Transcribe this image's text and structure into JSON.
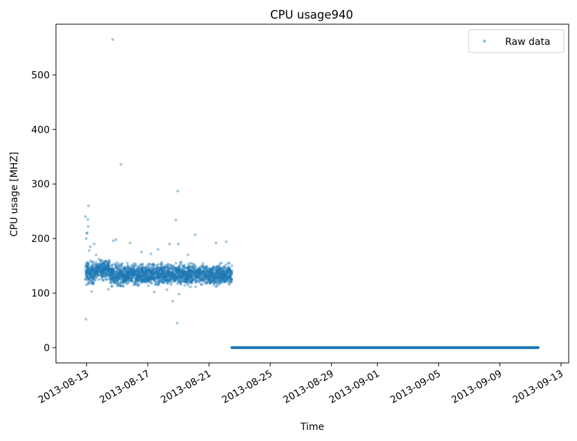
{
  "chart_data": {
    "type": "scatter",
    "title": "CPU usage940",
    "xlabel": "Time",
    "ylabel": "CPU usage [MHZ]",
    "x_axis_type": "date",
    "xlim": [
      "2013-08-11T00:00",
      "2013-09-13T12:00"
    ],
    "ylim": [
      -28,
      593
    ],
    "x_ticks": [
      "2013-08-13",
      "2013-08-17",
      "2013-08-21",
      "2013-08-25",
      "2013-08-29",
      "2013-09-01",
      "2013-09-05",
      "2013-09-09",
      "2013-09-13"
    ],
    "y_ticks": [
      0,
      100,
      200,
      300,
      400,
      500
    ],
    "grid": false,
    "legend": {
      "placement": "top-right",
      "entries": [
        "Raw data"
      ]
    },
    "series": [
      {
        "name": "Raw data",
        "color": "#1f77b4",
        "marker": "circle",
        "alpha": 0.4,
        "points": [
          [
            "2013-08-12T22:00",
            240
          ],
          [
            "2013-08-12T23:00",
            52
          ],
          [
            "2013-08-13T03:00",
            260
          ],
          [
            "2013-08-13T02:00",
            235
          ],
          [
            "2013-08-13T02:30",
            222
          ],
          [
            "2013-08-13T01:00",
            210
          ],
          [
            "2013-08-12T23:30",
            200
          ],
          [
            "2013-08-13T12:00",
            190
          ],
          [
            "2013-08-13T06:00",
            185
          ],
          [
            "2013-08-14T17:00",
            565
          ],
          [
            "2013-08-14T18:00",
            196
          ],
          [
            "2013-08-14T22:00",
            198
          ],
          [
            "2013-08-15T06:00",
            336
          ],
          [
            "2013-08-15T20:00",
            192
          ],
          [
            "2013-08-16T14:00",
            175
          ],
          [
            "2013-08-17T05:00",
            172
          ],
          [
            "2013-08-17T16:00",
            180
          ],
          [
            "2013-08-18T10:00",
            190
          ],
          [
            "2013-08-18T15:00",
            85
          ],
          [
            "2013-08-18T20:00",
            234
          ],
          [
            "2013-08-18T23:00",
            287
          ],
          [
            "2013-08-19T00:00",
            190
          ],
          [
            "2013-08-19T01:00",
            98
          ],
          [
            "2013-08-18T22:00",
            45
          ],
          [
            "2013-08-19T15:00",
            170
          ],
          [
            "2013-08-20T02:00",
            207
          ],
          [
            "2013-08-21T11:00",
            192
          ],
          [
            "2013-08-22T03:00",
            194
          ],
          [
            "2013-08-13T00:00",
            210
          ],
          [
            "2013-08-13T04:00",
            178
          ],
          [
            "2013-08-13T15:00",
            170
          ],
          [
            "2013-08-14T00:00",
            160
          ],
          [
            "2013-08-13T08:00",
            103
          ],
          [
            "2013-08-14T10:00",
            107
          ],
          [
            "2013-08-17T10:00",
            102
          ],
          [
            "2013-08-18T06:00",
            106
          ]
        ],
        "dense_segments": [
          {
            "start": "2013-08-12T22:00",
            "end": "2013-08-13T14:00",
            "y_min": 108,
            "y_max": 165
          },
          {
            "start": "2013-08-13T14:00",
            "end": "2013-08-14T12:00",
            "y_min": 120,
            "y_max": 168
          },
          {
            "start": "2013-08-14T12:00",
            "end": "2013-08-15T12:00",
            "y_min": 105,
            "y_max": 160
          },
          {
            "start": "2013-08-15T12:00",
            "end": "2013-08-22T12:00",
            "y_min": 108,
            "y_max": 160
          }
        ],
        "flat_segment": {
          "start": "2013-08-22T12:00",
          "end": "2013-09-11T12:00",
          "y": 0
        }
      }
    ]
  }
}
